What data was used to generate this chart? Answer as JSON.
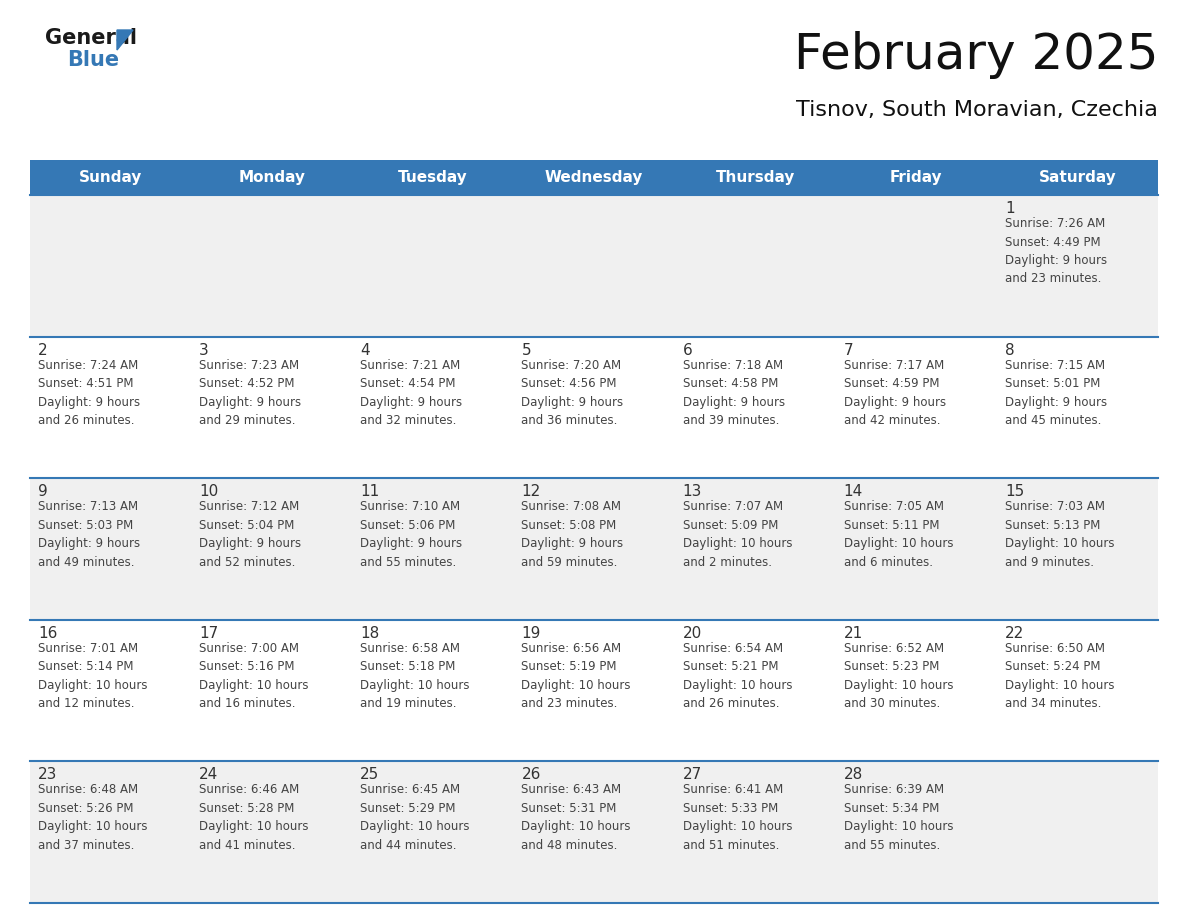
{
  "title": "February 2025",
  "subtitle": "Tisnov, South Moravian, Czechia",
  "header_color": "#3578b5",
  "header_text_color": "#ffffff",
  "day_names": [
    "Sunday",
    "Monday",
    "Tuesday",
    "Wednesday",
    "Thursday",
    "Friday",
    "Saturday"
  ],
  "bg_color": "#ffffff",
  "cell_bg_even": "#f0f0f0",
  "cell_bg_odd": "#ffffff",
  "row_line_color": "#3578b5",
  "text_color": "#444444",
  "num_color": "#333333",
  "calendar": [
    [
      {
        "day": null,
        "info": null
      },
      {
        "day": null,
        "info": null
      },
      {
        "day": null,
        "info": null
      },
      {
        "day": null,
        "info": null
      },
      {
        "day": null,
        "info": null
      },
      {
        "day": null,
        "info": null
      },
      {
        "day": 1,
        "info": "Sunrise: 7:26 AM\nSunset: 4:49 PM\nDaylight: 9 hours\nand 23 minutes."
      }
    ],
    [
      {
        "day": 2,
        "info": "Sunrise: 7:24 AM\nSunset: 4:51 PM\nDaylight: 9 hours\nand 26 minutes."
      },
      {
        "day": 3,
        "info": "Sunrise: 7:23 AM\nSunset: 4:52 PM\nDaylight: 9 hours\nand 29 minutes."
      },
      {
        "day": 4,
        "info": "Sunrise: 7:21 AM\nSunset: 4:54 PM\nDaylight: 9 hours\nand 32 minutes."
      },
      {
        "day": 5,
        "info": "Sunrise: 7:20 AM\nSunset: 4:56 PM\nDaylight: 9 hours\nand 36 minutes."
      },
      {
        "day": 6,
        "info": "Sunrise: 7:18 AM\nSunset: 4:58 PM\nDaylight: 9 hours\nand 39 minutes."
      },
      {
        "day": 7,
        "info": "Sunrise: 7:17 AM\nSunset: 4:59 PM\nDaylight: 9 hours\nand 42 minutes."
      },
      {
        "day": 8,
        "info": "Sunrise: 7:15 AM\nSunset: 5:01 PM\nDaylight: 9 hours\nand 45 minutes."
      }
    ],
    [
      {
        "day": 9,
        "info": "Sunrise: 7:13 AM\nSunset: 5:03 PM\nDaylight: 9 hours\nand 49 minutes."
      },
      {
        "day": 10,
        "info": "Sunrise: 7:12 AM\nSunset: 5:04 PM\nDaylight: 9 hours\nand 52 minutes."
      },
      {
        "day": 11,
        "info": "Sunrise: 7:10 AM\nSunset: 5:06 PM\nDaylight: 9 hours\nand 55 minutes."
      },
      {
        "day": 12,
        "info": "Sunrise: 7:08 AM\nSunset: 5:08 PM\nDaylight: 9 hours\nand 59 minutes."
      },
      {
        "day": 13,
        "info": "Sunrise: 7:07 AM\nSunset: 5:09 PM\nDaylight: 10 hours\nand 2 minutes."
      },
      {
        "day": 14,
        "info": "Sunrise: 7:05 AM\nSunset: 5:11 PM\nDaylight: 10 hours\nand 6 minutes."
      },
      {
        "day": 15,
        "info": "Sunrise: 7:03 AM\nSunset: 5:13 PM\nDaylight: 10 hours\nand 9 minutes."
      }
    ],
    [
      {
        "day": 16,
        "info": "Sunrise: 7:01 AM\nSunset: 5:14 PM\nDaylight: 10 hours\nand 12 minutes."
      },
      {
        "day": 17,
        "info": "Sunrise: 7:00 AM\nSunset: 5:16 PM\nDaylight: 10 hours\nand 16 minutes."
      },
      {
        "day": 18,
        "info": "Sunrise: 6:58 AM\nSunset: 5:18 PM\nDaylight: 10 hours\nand 19 minutes."
      },
      {
        "day": 19,
        "info": "Sunrise: 6:56 AM\nSunset: 5:19 PM\nDaylight: 10 hours\nand 23 minutes."
      },
      {
        "day": 20,
        "info": "Sunrise: 6:54 AM\nSunset: 5:21 PM\nDaylight: 10 hours\nand 26 minutes."
      },
      {
        "day": 21,
        "info": "Sunrise: 6:52 AM\nSunset: 5:23 PM\nDaylight: 10 hours\nand 30 minutes."
      },
      {
        "day": 22,
        "info": "Sunrise: 6:50 AM\nSunset: 5:24 PM\nDaylight: 10 hours\nand 34 minutes."
      }
    ],
    [
      {
        "day": 23,
        "info": "Sunrise: 6:48 AM\nSunset: 5:26 PM\nDaylight: 10 hours\nand 37 minutes."
      },
      {
        "day": 24,
        "info": "Sunrise: 6:46 AM\nSunset: 5:28 PM\nDaylight: 10 hours\nand 41 minutes."
      },
      {
        "day": 25,
        "info": "Sunrise: 6:45 AM\nSunset: 5:29 PM\nDaylight: 10 hours\nand 44 minutes."
      },
      {
        "day": 26,
        "info": "Sunrise: 6:43 AM\nSunset: 5:31 PM\nDaylight: 10 hours\nand 48 minutes."
      },
      {
        "day": 27,
        "info": "Sunrise: 6:41 AM\nSunset: 5:33 PM\nDaylight: 10 hours\nand 51 minutes."
      },
      {
        "day": 28,
        "info": "Sunrise: 6:39 AM\nSunset: 5:34 PM\nDaylight: 10 hours\nand 55 minutes."
      },
      {
        "day": null,
        "info": null
      }
    ]
  ],
  "title_fontsize": 36,
  "subtitle_fontsize": 16,
  "header_fontsize": 11,
  "day_num_fontsize": 11,
  "info_fontsize": 8.5,
  "logo_general_fontsize": 15,
  "logo_blue_fontsize": 15
}
